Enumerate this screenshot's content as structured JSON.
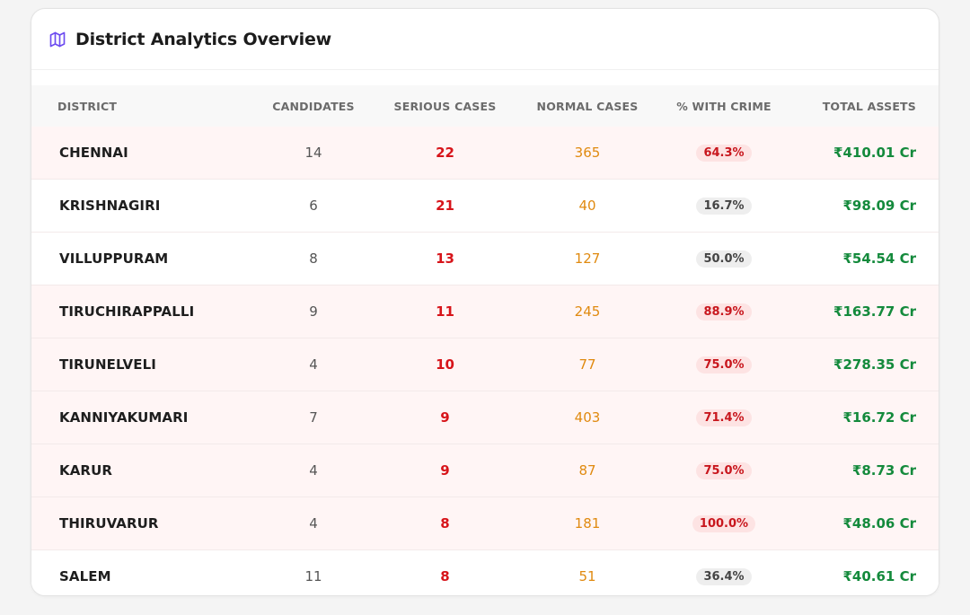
{
  "header": {
    "title": "District Analytics Overview",
    "icon": "map-icon",
    "accent": "#6d4cf0"
  },
  "columns": {
    "district": "DISTRICT",
    "candidates": "CANDIDATES",
    "serious": "SERIOUS CASES",
    "normal": "NORMAL CASES",
    "crime": "% WITH CRIME",
    "assets": "TOTAL ASSETS"
  },
  "colors": {
    "serious": "#d7141a",
    "normal": "#e08a10",
    "assets": "#148a3c",
    "highlight_row": "#fff5f5"
  },
  "rows": [
    {
      "district": "CHENNAI",
      "candidates": "14",
      "serious": "22",
      "normal": "365",
      "crime": "64.3%",
      "assets": "₹410.01 Cr",
      "level": "high"
    },
    {
      "district": "KRISHNAGIRI",
      "candidates": "6",
      "serious": "21",
      "normal": "40",
      "crime": "16.7%",
      "assets": "₹98.09 Cr",
      "level": "low"
    },
    {
      "district": "VILLUPPURAM",
      "candidates": "8",
      "serious": "13",
      "normal": "127",
      "crime": "50.0%",
      "assets": "₹54.54 Cr",
      "level": "low"
    },
    {
      "district": "TIRUCHIRAPPALLI",
      "candidates": "9",
      "serious": "11",
      "normal": "245",
      "crime": "88.9%",
      "assets": "₹163.77 Cr",
      "level": "high"
    },
    {
      "district": "TIRUNELVELI",
      "candidates": "4",
      "serious": "10",
      "normal": "77",
      "crime": "75.0%",
      "assets": "₹278.35 Cr",
      "level": "high"
    },
    {
      "district": "KANNIYAKUMARI",
      "candidates": "7",
      "serious": "9",
      "normal": "403",
      "crime": "71.4%",
      "assets": "₹16.72 Cr",
      "level": "high"
    },
    {
      "district": "KARUR",
      "candidates": "4",
      "serious": "9",
      "normal": "87",
      "crime": "75.0%",
      "assets": "₹8.73 Cr",
      "level": "high"
    },
    {
      "district": "THIRUVARUR",
      "candidates": "4",
      "serious": "8",
      "normal": "181",
      "crime": "100.0%",
      "assets": "₹48.06 Cr",
      "level": "high"
    },
    {
      "district": "SALEM",
      "candidates": "11",
      "serious": "8",
      "normal": "51",
      "crime": "36.4%",
      "assets": "₹40.61 Cr",
      "level": "low"
    }
  ]
}
